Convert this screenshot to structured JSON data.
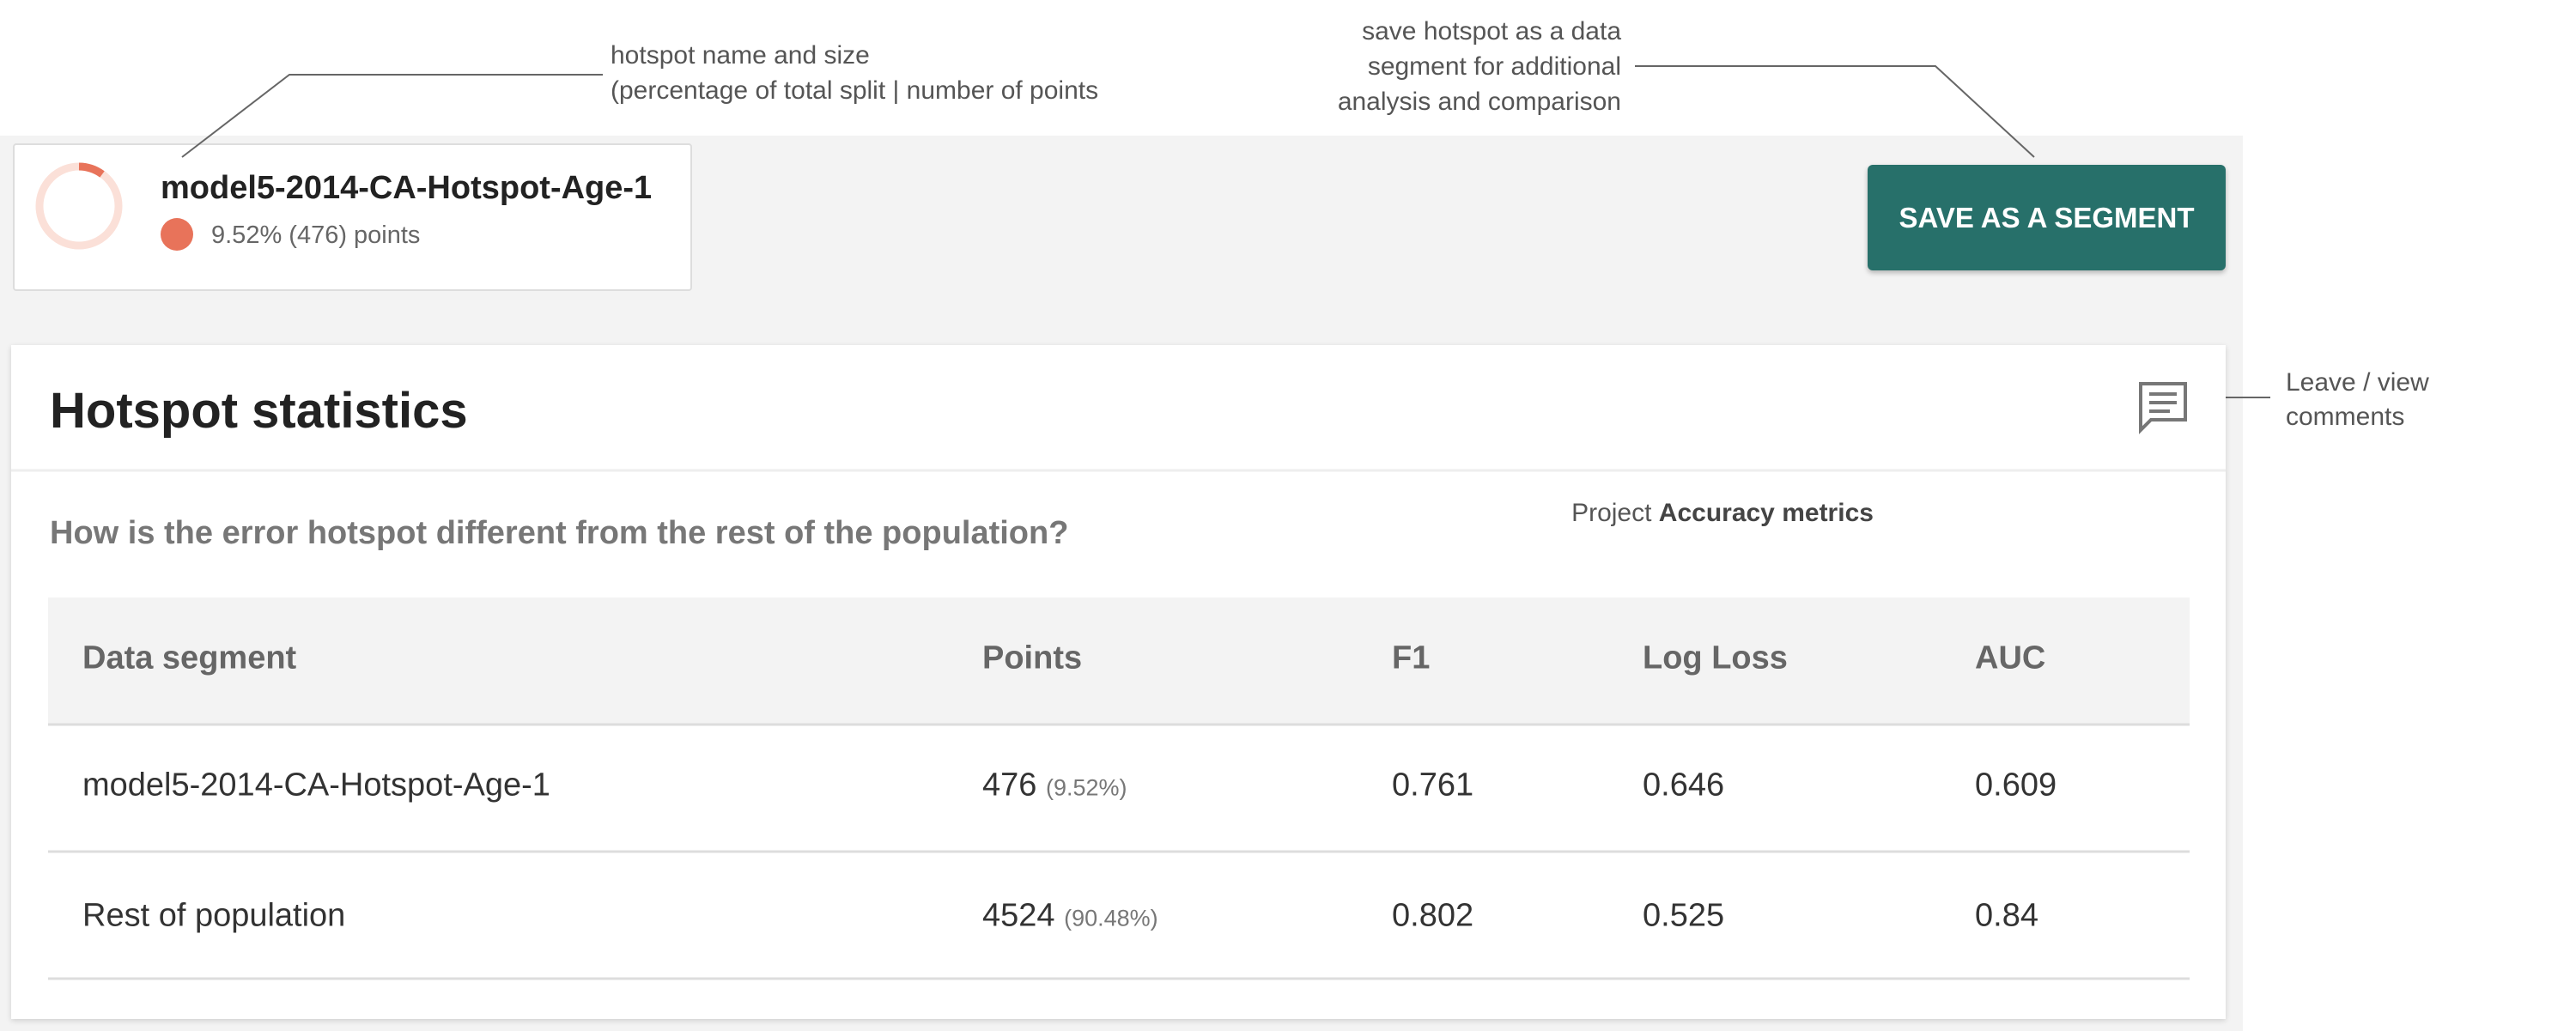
{
  "annotations": {
    "hotspot_name": [
      "hotspot name and size",
      "(percentage of total split | number of points"
    ],
    "save": [
      "save hotspot as a data",
      "segment for additional",
      "analysis and comparison"
    ],
    "comments": [
      "Leave / view",
      "comments"
    ],
    "metrics_prefix": "Project",
    "metrics_bold": "Accuracy metrics"
  },
  "hotspot": {
    "name": "model5-2014-CA-Hotspot-Age-1",
    "size": "9.52% (476) points"
  },
  "button": "SAVE AS A SEGMENT",
  "stats": {
    "title": "Hotspot statistics",
    "question": "How is the error hotspot different from the rest of the population?",
    "columns": [
      "Data segment",
      "Points",
      "F1",
      "Log Loss",
      "AUC"
    ],
    "rows": [
      [
        "model5-2014-CA-Hotspot-Age-1",
        "476",
        "(9.52%)",
        "0.761",
        "0.646",
        "0.609"
      ],
      [
        "Rest of population",
        "4524",
        "(90.48%)",
        "0.802",
        "0.525",
        "0.84"
      ]
    ]
  }
}
